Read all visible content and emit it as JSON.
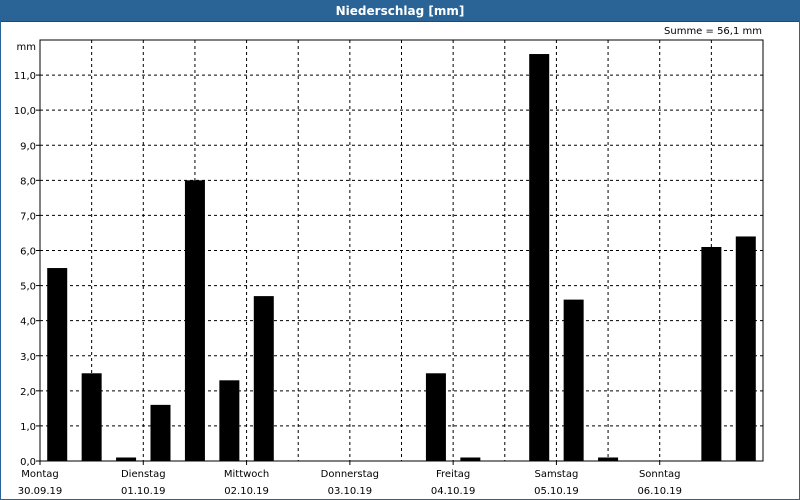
{
  "title": "Niederschlag [mm]",
  "sum_label": "Summe = 56,1 mm",
  "chart_data": {
    "type": "bar",
    "title": "Niederschlag [mm]",
    "ylabel": "mm",
    "ylim": [
      0,
      12
    ],
    "yticks": [
      "0,0",
      "1,0",
      "2,0",
      "3,0",
      "4,0",
      "5,0",
      "6,0",
      "7,0",
      "8,0",
      "9,0",
      "10,0",
      "11,0"
    ],
    "days": [
      {
        "name": "Montag",
        "date": "30.09.19"
      },
      {
        "name": "Dienstag",
        "date": "01.10.19"
      },
      {
        "name": "Mittwoch",
        "date": "02.10.19"
      },
      {
        "name": "Donnerstag",
        "date": "03.10.19"
      },
      {
        "name": "Freitag",
        "date": "04.10.19"
      },
      {
        "name": "Samstag",
        "date": "05.10.19"
      },
      {
        "name": "Sonntag",
        "date": "06.10.19"
      }
    ],
    "bars_per_day": 3,
    "values": [
      5.5,
      2.5,
      0.1,
      1.6,
      8.0,
      2.3,
      4.7,
      0,
      0,
      0,
      0,
      2.5,
      0.1,
      0,
      11.6,
      4.6,
      0.1,
      0,
      0,
      6.1,
      6.4
    ],
    "colors": {
      "bar": "#000000",
      "grid": "#000000",
      "axis": "#000000"
    }
  }
}
